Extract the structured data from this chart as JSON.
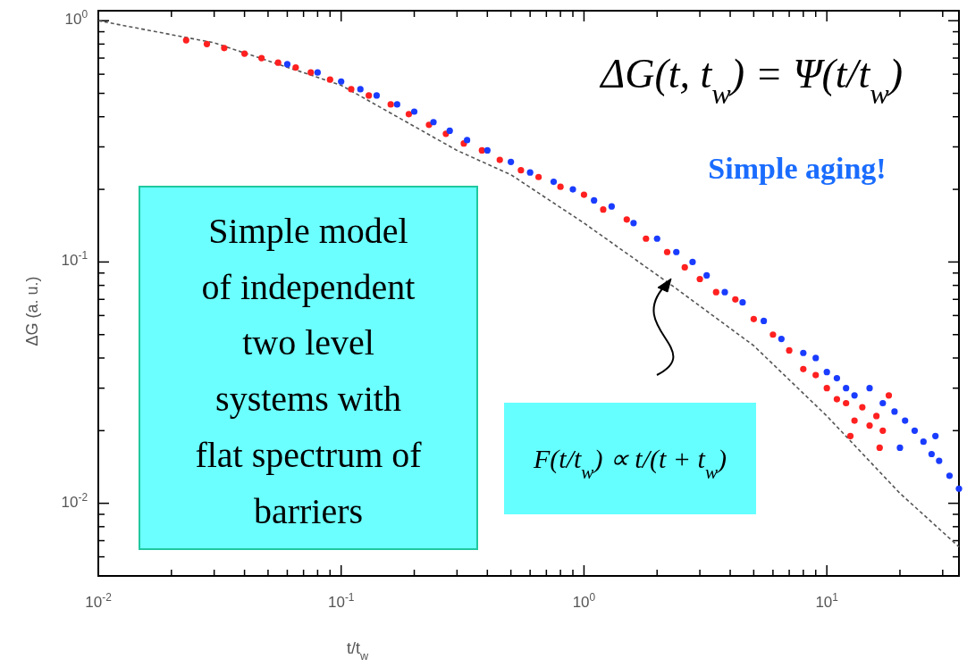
{
  "chart_data": {
    "type": "scatter",
    "xlabel": "t/t$_{w}$",
    "ylabel": "ΔG (a. u.)",
    "log": "xy",
    "xlim": [
      0.01,
      35
    ],
    "ylim": [
      0.005,
      1.1
    ],
    "xticks": [
      {
        "value": 0.01,
        "label": "10$^{-2}$"
      },
      {
        "value": 0.02,
        "label": null
      },
      {
        "value": 0.03,
        "label": null
      },
      {
        "value": 0.04,
        "label": null
      },
      {
        "value": 0.05,
        "label": null
      },
      {
        "value": 0.06,
        "label": null
      },
      {
        "value": 0.07,
        "label": null
      },
      {
        "value": 0.08,
        "label": null
      },
      {
        "value": 0.09,
        "label": null
      },
      {
        "value": 0.1,
        "label": "10$^{-1}$"
      },
      {
        "value": 0.2,
        "label": null
      },
      {
        "value": 0.3,
        "label": null
      },
      {
        "value": 0.4,
        "label": null
      },
      {
        "value": 0.5,
        "label": null
      },
      {
        "value": 0.6,
        "label": null
      },
      {
        "value": 0.7,
        "label": null
      },
      {
        "value": 0.8,
        "label": null
      },
      {
        "value": 0.9,
        "label": null
      },
      {
        "value": 1,
        "label": "10$^{0}$"
      },
      {
        "value": 2,
        "label": null
      },
      {
        "value": 3,
        "label": null
      },
      {
        "value": 4,
        "label": null
      },
      {
        "value": 5,
        "label": null
      },
      {
        "value": 6,
        "label": null
      },
      {
        "value": 7,
        "label": null
      },
      {
        "value": 8,
        "label": null
      },
      {
        "value": 9,
        "label": null
      },
      {
        "value": 10,
        "label": "10$^{1}$"
      },
      {
        "value": 20,
        "label": null
      },
      {
        "value": 30,
        "label": null
      }
    ],
    "yticks": [
      {
        "value": 0.006,
        "label": null
      },
      {
        "value": 0.007,
        "label": null
      },
      {
        "value": 0.008,
        "label": null
      },
      {
        "value": 0.009,
        "label": null
      },
      {
        "value": 0.01,
        "label": "10$^{-2}$"
      },
      {
        "value": 0.02,
        "label": null
      },
      {
        "value": 0.03,
        "label": null
      },
      {
        "value": 0.04,
        "label": null
      },
      {
        "value": 0.05,
        "label": null
      },
      {
        "value": 0.06,
        "label": null
      },
      {
        "value": 0.07,
        "label": null
      },
      {
        "value": 0.08,
        "label": null
      },
      {
        "value": 0.09,
        "label": null
      },
      {
        "value": 0.1,
        "label": "10$^{-1}$"
      },
      {
        "value": 0.2,
        "label": null
      },
      {
        "value": 0.3,
        "label": null
      },
      {
        "value": 0.4,
        "label": null
      },
      {
        "value": 0.5,
        "label": null
      },
      {
        "value": 0.6,
        "label": null
      },
      {
        "value": 0.7,
        "label": null
      },
      {
        "value": 0.8,
        "label": null
      },
      {
        "value": 0.9,
        "label": null
      },
      {
        "value": 1,
        "label": "10$^{0}$"
      }
    ],
    "marker": "circle",
    "series": [
      {
        "type": "line",
        "marker": "none",
        "color": "#555555",
        "line_style": "dashed",
        "x": [
          0.01,
          0.03,
          0.1,
          0.3,
          0.5,
          1,
          2.3,
          5,
          10,
          20,
          35
        ],
        "values": [
          1.0,
          0.81,
          0.54,
          0.29,
          0.23,
          0.145,
          0.08,
          0.045,
          0.023,
          0.011,
          0.0066
        ]
      },
      {
        "color": "#ff2020",
        "x": [
          0.023,
          0.028,
          0.033,
          0.04,
          0.047,
          0.055,
          0.065,
          0.075,
          0.09,
          0.11,
          0.13,
          0.16,
          0.19,
          0.23,
          0.27,
          0.32,
          0.38,
          0.45,
          0.55,
          0.65,
          0.8,
          1.0,
          1.2,
          1.5,
          1.8,
          2.2,
          2.6,
          3.0,
          3.5,
          4.2,
          5.0,
          6.0,
          7.0,
          8.0,
          9.0,
          10,
          11,
          12,
          12.5,
          13,
          14,
          15,
          16,
          16.5,
          17,
          18
        ],
        "values": [
          0.83,
          0.8,
          0.77,
          0.73,
          0.7,
          0.67,
          0.64,
          0.61,
          0.57,
          0.52,
          0.49,
          0.45,
          0.41,
          0.37,
          0.34,
          0.31,
          0.29,
          0.265,
          0.24,
          0.225,
          0.205,
          0.19,
          0.165,
          0.15,
          0.125,
          0.11,
          0.095,
          0.085,
          0.075,
          0.07,
          0.058,
          0.05,
          0.043,
          0.036,
          0.034,
          0.03,
          0.027,
          0.026,
          0.019,
          0.022,
          0.025,
          0.021,
          0.023,
          0.017,
          0.02,
          0.028
        ]
      },
      {
        "color": "#1a3cff",
        "x": [
          0.06,
          0.08,
          0.1,
          0.12,
          0.14,
          0.17,
          0.2,
          0.24,
          0.28,
          0.33,
          0.4,
          0.5,
          0.6,
          0.75,
          0.9,
          1.1,
          1.3,
          1.6,
          2.0,
          2.4,
          2.8,
          3.2,
          3.8,
          4.5,
          5.5,
          6.5,
          8,
          9,
          10,
          11,
          12,
          13,
          15,
          17,
          19,
          20,
          21,
          23,
          25,
          27,
          28,
          29,
          32,
          35
        ],
        "values": [
          0.66,
          0.61,
          0.56,
          0.52,
          0.49,
          0.45,
          0.42,
          0.38,
          0.35,
          0.32,
          0.29,
          0.26,
          0.235,
          0.215,
          0.2,
          0.18,
          0.17,
          0.145,
          0.125,
          0.11,
          0.1,
          0.088,
          0.075,
          0.068,
          0.057,
          0.048,
          0.042,
          0.04,
          0.035,
          0.033,
          0.03,
          0.028,
          0.03,
          0.026,
          0.024,
          0.017,
          0.022,
          0.02,
          0.018,
          0.016,
          0.019,
          0.015,
          0.013,
          0.0115
        ]
      }
    ],
    "annotations": [
      "ΔG(t, t$_{w}$) = Ψ(t/t$_{w}$)",
      "Simple aging!",
      "Simple model\nof independent\ntwo level\nsystems with\nflat spectrum of\nbarriers",
      "F(t/t$_{w}$) ∝ t/(t + t$_{w}$)"
    ]
  }
}
